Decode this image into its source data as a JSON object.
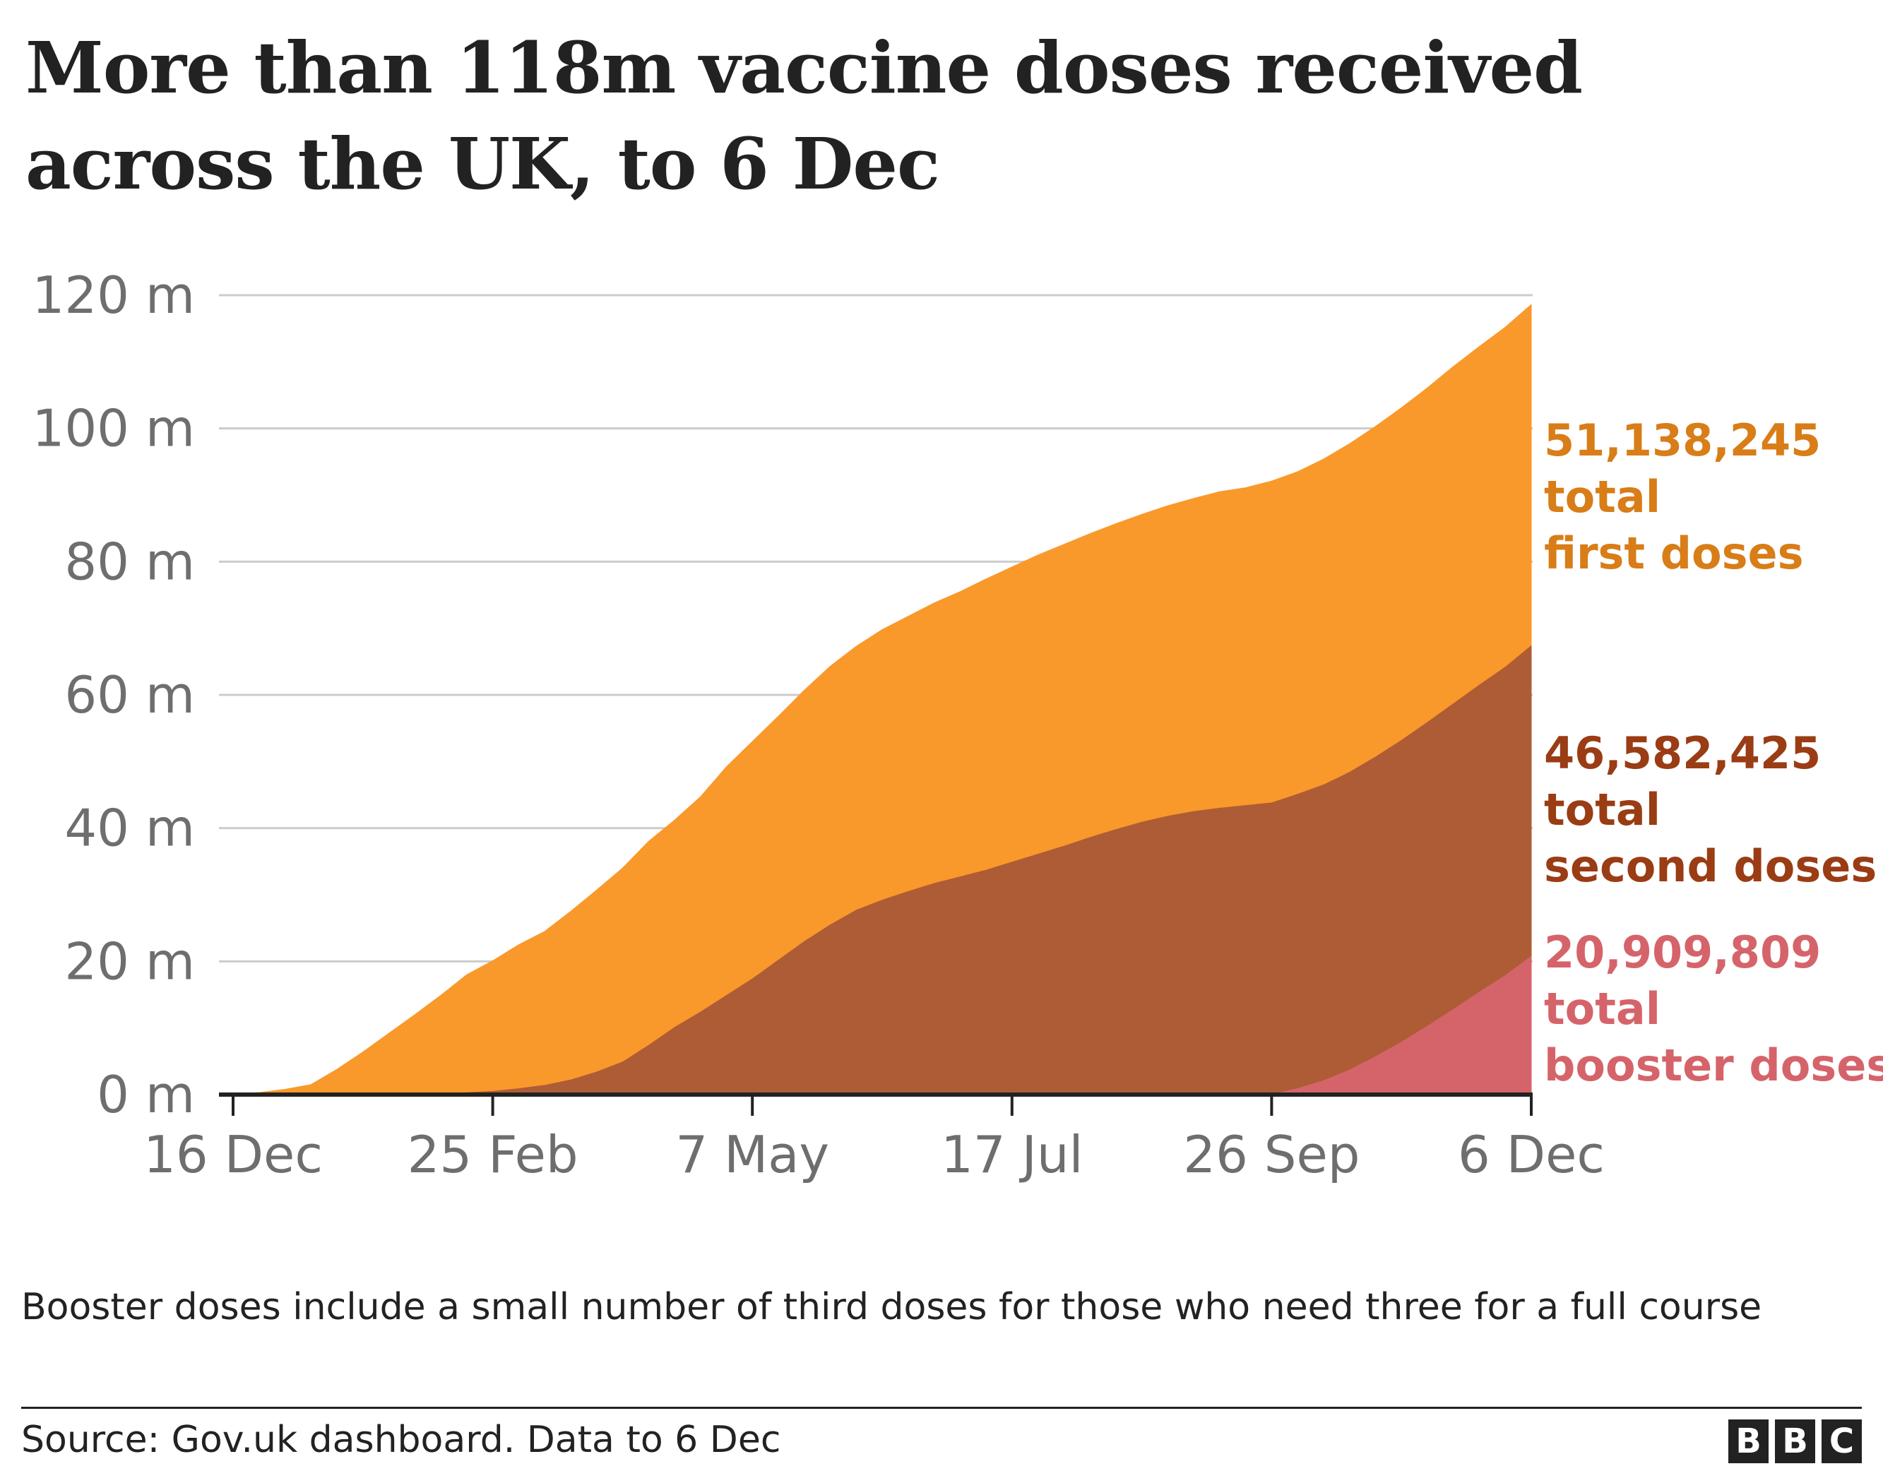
{
  "header": {
    "title": "More than 118m vaccine doses received across the UK, to 6 Dec"
  },
  "chart_data": {
    "type": "area",
    "stacked": true,
    "title": "More than 118m vaccine doses received across the UK, to 6 Dec",
    "xlabel": "",
    "ylabel": "",
    "x_tick_labels": [
      "16 Dec",
      "25 Feb",
      "7 May",
      "17 Jul",
      "26 Sep",
      "6 Dec"
    ],
    "y_tick_labels": [
      "0 m",
      "20 m",
      "40 m",
      "60 m",
      "80 m",
      "100 m",
      "120 m"
    ],
    "ylim": [
      0,
      120
    ],
    "y_unit": "millions of doses",
    "grid": true,
    "legend": "direct labels at right end of chart",
    "x": [
      "16 Dec",
      "23 Dec",
      "30 Dec",
      "6 Jan",
      "13 Jan",
      "20 Jan",
      "27 Jan",
      "3 Feb",
      "10 Feb",
      "17 Feb",
      "25 Feb",
      "3 Mar",
      "10 Mar",
      "17 Mar",
      "24 Mar",
      "31 Mar",
      "7 Apr",
      "14 Apr",
      "21 Apr",
      "28 Apr",
      "7 May",
      "14 May",
      "21 May",
      "28 May",
      "4 Jun",
      "11 Jun",
      "18 Jun",
      "25 Jun",
      "2 Jul",
      "9 Jul",
      "17 Jul",
      "24 Jul",
      "31 Jul",
      "7 Aug",
      "14 Aug",
      "21 Aug",
      "28 Aug",
      "4 Sep",
      "11 Sep",
      "18 Sep",
      "26 Sep",
      "3 Oct",
      "10 Oct",
      "17 Oct",
      "24 Oct",
      "31 Oct",
      "7 Nov",
      "14 Nov",
      "21 Nov",
      "28 Nov",
      "6 Dec"
    ],
    "series": [
      {
        "name": "total booster doses",
        "color": "#d5646a",
        "values": [
          0,
          0,
          0,
          0,
          0,
          0,
          0,
          0,
          0,
          0,
          0,
          0,
          0,
          0,
          0,
          0,
          0,
          0,
          0,
          0,
          0,
          0,
          0,
          0,
          0,
          0,
          0,
          0,
          0,
          0,
          0,
          0,
          0,
          0,
          0,
          0,
          0,
          0,
          0,
          0,
          0.1,
          1.0,
          2.2,
          3.8,
          5.8,
          8.0,
          10.4,
          12.9,
          15.5,
          18.0,
          20.9
        ]
      },
      {
        "name": "total second doses",
        "color": "#ad5c36",
        "values": [
          0,
          0,
          0,
          0,
          0,
          0,
          0,
          0,
          0.1,
          0.4,
          0.6,
          1.0,
          1.5,
          2.3,
          3.5,
          5.0,
          7.5,
          10.2,
          12.5,
          15.0,
          17.5,
          20.3,
          23.1,
          25.6,
          27.8,
          29.3,
          30.6,
          31.8,
          32.8,
          33.8,
          35.0,
          36.2,
          37.4,
          38.7,
          39.9,
          41.0,
          41.9,
          42.6,
          43.1,
          43.5,
          43.8,
          44.2,
          44.4,
          44.7,
          45.0,
          45.3,
          45.6,
          45.9,
          46.1,
          46.3,
          46.6
        ]
      },
      {
        "name": "total first doses",
        "color": "#f9992b",
        "values": [
          0.1,
          0.3,
          0.8,
          1.5,
          3.8,
          6.4,
          9.2,
          12.0,
          14.8,
          17.6,
          19.5,
          21.5,
          23.0,
          25.2,
          27.2,
          29.0,
          30.5,
          31.0,
          32.2,
          34.2,
          35.5,
          36.5,
          37.6,
          38.7,
          39.5,
          40.5,
          41.2,
          42.0,
          42.7,
          43.6,
          44.2,
          44.8,
          45.2,
          45.5,
          45.8,
          46.1,
          46.5,
          46.9,
          47.4,
          47.6,
          48.2,
          48.3,
          48.8,
          49.2,
          49.5,
          49.8,
          50.1,
          50.5,
          50.7,
          50.9,
          51.1
        ]
      }
    ],
    "end_labels": [
      {
        "value": "51,138,245",
        "line1": "total",
        "line2": "first doses",
        "color": "#d87d18"
      },
      {
        "value": "46,582,425",
        "line1": "total",
        "line2": "second doses",
        "color": "#9a3c14"
      },
      {
        "value": "20,909,809",
        "line1": "total",
        "line2": "booster doses",
        "color": "#d5646a"
      }
    ]
  },
  "footer": {
    "note": "Booster doses include a small number of third doses for those who need three for a full course",
    "source": "Source: Gov.uk dashboard. Data to 6 Dec",
    "logo_letters": [
      "B",
      "B",
      "C"
    ]
  }
}
